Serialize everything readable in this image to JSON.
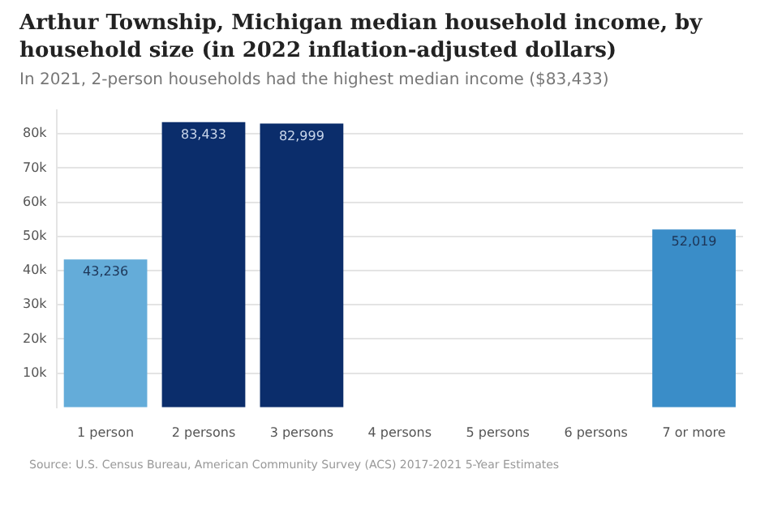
{
  "chart_data": {
    "type": "bar",
    "title": "Arthur Township, Michigan median household income, by household size (in 2022 inflation-adjusted dollars)",
    "subtitle": "In 2021, 2-person households had the highest median income ($83,433)",
    "categories": [
      "1 person",
      "2 persons",
      "3 persons",
      "4 persons",
      "5 persons",
      "6 persons",
      "7 or more"
    ],
    "values": [
      43236,
      83433,
      82999,
      null,
      null,
      null,
      52019
    ],
    "colors": [
      "#64acd9",
      "#0b2d6b",
      "#0b2d6b",
      "#64acd9",
      "#64acd9",
      "#64acd9",
      "#3a8dc8"
    ],
    "value_labels": [
      "43,236",
      "83,433",
      "82,999",
      null,
      null,
      null,
      "52,019"
    ],
    "ylim": [
      0,
      87000
    ],
    "yticks": [
      {
        "value": 10000,
        "label": "10k"
      },
      {
        "value": 20000,
        "label": "20k"
      },
      {
        "value": 30000,
        "label": "30k"
      },
      {
        "value": 40000,
        "label": "40k"
      },
      {
        "value": 50000,
        "label": "50k"
      },
      {
        "value": 60000,
        "label": "60k"
      },
      {
        "value": 70000,
        "label": "70k"
      },
      {
        "value": 80000,
        "label": "80k"
      }
    ],
    "grid": "y",
    "legend": false,
    "annotations": [
      "Source: U.S. Census Bureau, American Community Survey (ACS) 2017-2021 5-Year Estimates"
    ]
  }
}
